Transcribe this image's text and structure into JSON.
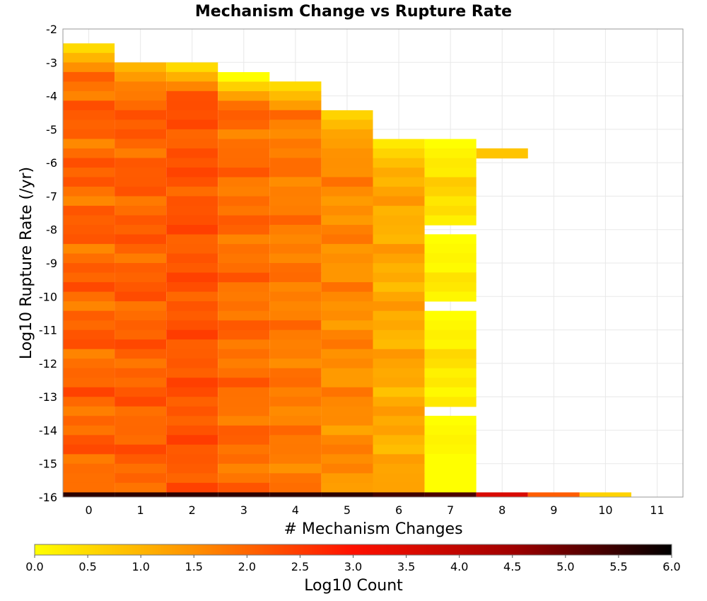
{
  "chart_data": {
    "type": "heatmap",
    "title": "Mechanism Change vs Rupture Rate",
    "xlabel": "# Mechanism Changes",
    "ylabel": "Log10 Rupture Rate (/yr)",
    "colorbar_label": "Log10 Count",
    "x_ticks": [
      "0",
      "1",
      "2",
      "3",
      "4",
      "5",
      "6",
      "7",
      "8",
      "9",
      "10",
      "11"
    ],
    "y_ticks": [
      "-2",
      "-3",
      "-4",
      "-5",
      "-6",
      "-7",
      "-8",
      "-9",
      "-10",
      "-11",
      "-12",
      "-13",
      "-14",
      "-15",
      "-16"
    ],
    "colorbar_ticks": [
      "0.0",
      "0.5",
      "1.0",
      "1.5",
      "2.0",
      "2.5",
      "3.0",
      "3.5",
      "4.0",
      "4.5",
      "5.0",
      "5.5",
      "6.0"
    ],
    "xlim": [
      -0.5,
      11.5
    ],
    "ylim": [
      -16,
      -2
    ],
    "zlim": [
      0,
      6
    ],
    "y_bin_width": 0.2857,
    "colorscale": [
      "#ffff00",
      "#ff9000",
      "#ff1000",
      "#a00000",
      "#000000"
    ],
    "grid": true,
    "columns": [
      {
        "x": 0,
        "top": -2.43,
        "bottom": -15.86,
        "base": 2.0,
        "amp": 0.45,
        "min_bin_value": 0.5
      },
      {
        "x": 1,
        "top": -3.0,
        "bottom": -15.86,
        "base": 2.05,
        "amp": 0.35,
        "min_bin_value": 1.0
      },
      {
        "x": 2,
        "top": -3.0,
        "bottom": -15.86,
        "base": 2.2,
        "amp": 0.3,
        "min_bin_value": 0.5
      },
      {
        "x": 3,
        "top": -3.29,
        "bottom": -15.86,
        "base": 1.9,
        "amp": 0.35,
        "min_bin_value": 0.0
      },
      {
        "x": 4,
        "top": -3.57,
        "bottom": -15.86,
        "base": 1.75,
        "amp": 0.3,
        "min_bin_value": 0.5
      },
      {
        "x": 5,
        "top": -4.43,
        "bottom": -15.86,
        "base": 1.55,
        "amp": 0.35,
        "min_bin_value": 0.6
      },
      {
        "x": 6,
        "top": -5.29,
        "bottom": -15.86,
        "base": 1.15,
        "amp": 0.35,
        "min_bin_value": 0.3
      },
      {
        "x": 7,
        "top": -5.29,
        "bottom": -7.86,
        "base": 0.45,
        "amp": 0.35,
        "min_bin_value": 0.0
      },
      {
        "x": 7,
        "top": -8.14,
        "bottom": -10.14,
        "base": 0.2,
        "amp": 0.25,
        "min_bin_value": 0.0
      },
      {
        "x": 7,
        "top": -10.43,
        "bottom": -13.29,
        "base": 0.3,
        "amp": 0.3,
        "min_bin_value": 0.0
      },
      {
        "x": 7,
        "top": -13.57,
        "bottom": -14.71,
        "base": 0.25,
        "amp": 0.25,
        "min_bin_value": 0.0
      },
      {
        "x": 7,
        "top": -14.71,
        "bottom": -15.86,
        "base": 0.0,
        "amp": 0.0,
        "min_bin_value": 0.0
      },
      {
        "x": 8,
        "top": -5.57,
        "bottom": -5.86,
        "base": 0.8,
        "amp": 0.0,
        "min_bin_value": 0.8
      }
    ],
    "bottom_row": {
      "top": -15.86,
      "bottom": -16.0,
      "values": [
        5.6,
        5.6,
        5.6,
        5.6,
        5.6,
        5.6,
        5.4,
        5.3,
        3.6,
        2.1,
        0.6
      ]
    }
  }
}
